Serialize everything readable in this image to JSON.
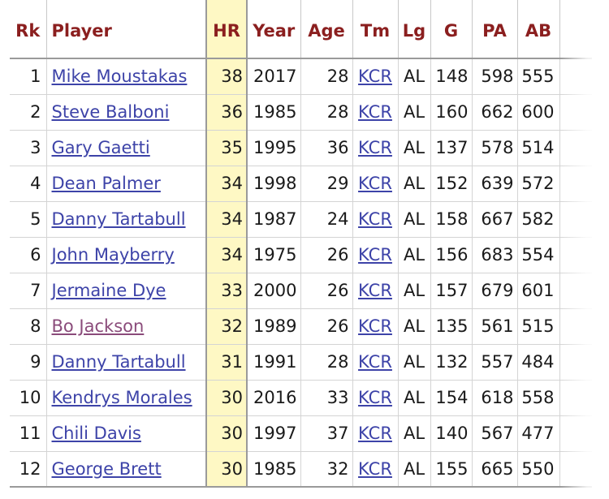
{
  "headers": {
    "rk": "Rk",
    "player": "Player",
    "hr": "HR",
    "year": "Year",
    "age": "Age",
    "tm": "Tm",
    "lg": "Lg",
    "g": "G",
    "pa": "PA",
    "ab": "AB"
  },
  "rows": [
    {
      "rk": "1",
      "player": "Mike Moustakas",
      "hr": "38",
      "year": "2017",
      "age": "28",
      "tm": "KCR",
      "lg": "AL",
      "g": "148",
      "pa": "598",
      "ab": "555"
    },
    {
      "rk": "2",
      "player": "Steve Balboni",
      "hr": "36",
      "year": "1985",
      "age": "28",
      "tm": "KCR",
      "lg": "AL",
      "g": "160",
      "pa": "662",
      "ab": "600"
    },
    {
      "rk": "3",
      "player": "Gary Gaetti",
      "hr": "35",
      "year": "1995",
      "age": "36",
      "tm": "KCR",
      "lg": "AL",
      "g": "137",
      "pa": "578",
      "ab": "514"
    },
    {
      "rk": "4",
      "player": "Dean Palmer",
      "hr": "34",
      "year": "1998",
      "age": "29",
      "tm": "KCR",
      "lg": "AL",
      "g": "152",
      "pa": "639",
      "ab": "572"
    },
    {
      "rk": "5",
      "player": "Danny Tartabull",
      "hr": "34",
      "year": "1987",
      "age": "24",
      "tm": "KCR",
      "lg": "AL",
      "g": "158",
      "pa": "667",
      "ab": "582"
    },
    {
      "rk": "6",
      "player": "John Mayberry",
      "hr": "34",
      "year": "1975",
      "age": "26",
      "tm": "KCR",
      "lg": "AL",
      "g": "156",
      "pa": "683",
      "ab": "554"
    },
    {
      "rk": "7",
      "player": "Jermaine Dye",
      "hr": "33",
      "year": "2000",
      "age": "26",
      "tm": "KCR",
      "lg": "AL",
      "g": "157",
      "pa": "679",
      "ab": "601"
    },
    {
      "rk": "8",
      "player": "Bo Jackson",
      "hr": "32",
      "year": "1989",
      "age": "26",
      "tm": "KCR",
      "lg": "AL",
      "g": "135",
      "pa": "561",
      "ab": "515"
    },
    {
      "rk": "9",
      "player": "Danny Tartabull",
      "hr": "31",
      "year": "1991",
      "age": "28",
      "tm": "KCR",
      "lg": "AL",
      "g": "132",
      "pa": "557",
      "ab": "484"
    },
    {
      "rk": "10",
      "player": "Kendrys Morales",
      "hr": "30",
      "year": "2016",
      "age": "33",
      "tm": "KCR",
      "lg": "AL",
      "g": "154",
      "pa": "618",
      "ab": "558"
    },
    {
      "rk": "11",
      "player": "Chili Davis",
      "hr": "30",
      "year": "1997",
      "age": "37",
      "tm": "KCR",
      "lg": "AL",
      "g": "140",
      "pa": "567",
      "ab": "477"
    },
    {
      "rk": "12",
      "player": "George Brett",
      "hr": "30",
      "year": "1985",
      "age": "32",
      "tm": "KCR",
      "lg": "AL",
      "g": "155",
      "pa": "665",
      "ab": "550"
    }
  ],
  "colors": {
    "header_text": "#8b1f1f",
    "link": "#3d43a8",
    "visited_link": "#8a4b7a",
    "sorted_column_bg": "#fef8c4"
  }
}
